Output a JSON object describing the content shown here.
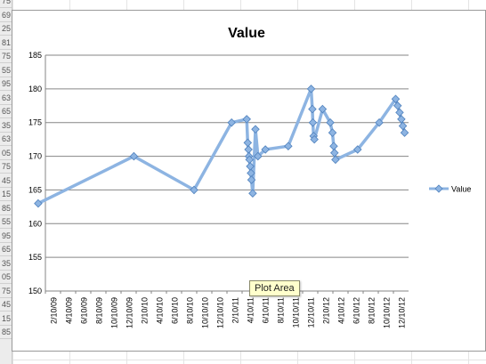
{
  "sheet": {
    "row_numbers": [
      "75",
      "69",
      "25",
      "81",
      "75",
      "55",
      "95",
      "63",
      "65",
      "35",
      "63",
      "05",
      "75",
      "45",
      "15",
      "85",
      "55",
      "95",
      "65",
      "35",
      "05",
      "75",
      "45",
      "15",
      "85"
    ]
  },
  "tooltip": {
    "text": "Plot Area"
  },
  "colors": {
    "series": "#8db4e2",
    "marker_fill": "#8db4e2",
    "marker_stroke": "#4f81bd",
    "grid": "#868686"
  },
  "chart_data": {
    "type": "line",
    "title": "Value",
    "xlabel": "",
    "ylabel": "",
    "ylim": [
      150,
      185
    ],
    "y_ticks": [
      150,
      155,
      160,
      165,
      170,
      175,
      180,
      185
    ],
    "x_tick_labels": [
      "2/10/09",
      "4/10/09",
      "6/10/09",
      "8/10/09",
      "10/10/09",
      "12/10/09",
      "2/10/10",
      "4/10/10",
      "6/10/10",
      "8/10/10",
      "10/10/10",
      "12/10/10",
      "2/10/11",
      "4/10/11",
      "6/10/11",
      "8/10/11",
      "10/10/11",
      "12/10/11",
      "2/10/12",
      "4/10/12",
      "6/10/12",
      "8/10/12",
      "10/10/12",
      "12/10/12"
    ],
    "xlim": [
      "2009-02-10",
      "2013-02-10"
    ],
    "legend": {
      "position": "right",
      "entries": [
        "Value"
      ]
    },
    "grid": true,
    "series": [
      {
        "name": "Value",
        "points": [
          [
            "2009-01-12",
            163
          ],
          [
            "2010-02-01",
            170
          ],
          [
            "2010-10-01",
            165
          ],
          [
            "2011-03-01",
            175
          ],
          [
            "2011-05-01",
            175.5
          ],
          [
            "2011-05-05",
            172
          ],
          [
            "2011-05-08",
            171
          ],
          [
            "2011-05-10",
            170
          ],
          [
            "2011-05-12",
            169.5
          ],
          [
            "2011-05-15",
            168.5
          ],
          [
            "2011-05-18",
            167.5
          ],
          [
            "2011-05-20",
            166.5
          ],
          [
            "2011-05-25",
            164.5
          ],
          [
            "2011-06-05",
            174
          ],
          [
            "2011-06-15",
            170
          ],
          [
            "2011-07-15",
            171
          ],
          [
            "2011-10-15",
            171.5
          ],
          [
            "2012-01-15",
            180
          ],
          [
            "2012-01-20",
            177
          ],
          [
            "2012-01-22",
            175
          ],
          [
            "2012-01-25",
            173
          ],
          [
            "2012-01-28",
            172.5
          ],
          [
            "2012-03-01",
            177
          ],
          [
            "2012-04-01",
            175
          ],
          [
            "2012-04-10",
            173.5
          ],
          [
            "2012-04-15",
            171.5
          ],
          [
            "2012-04-18",
            170.5
          ],
          [
            "2012-04-22",
            169.5
          ],
          [
            "2012-07-20",
            171
          ],
          [
            "2012-10-15",
            175
          ],
          [
            "2012-12-20",
            178.5
          ],
          [
            "2012-12-28",
            177.5
          ],
          [
            "2013-01-05",
            176.5
          ],
          [
            "2013-01-12",
            175.5
          ],
          [
            "2013-01-18",
            174.5
          ],
          [
            "2013-01-25",
            173.5
          ]
        ]
      }
    ]
  }
}
